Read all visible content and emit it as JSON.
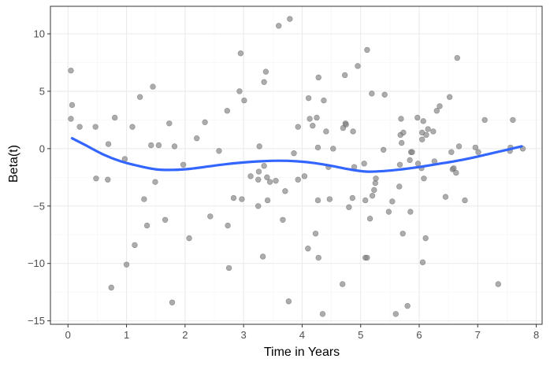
{
  "chart_data": {
    "type": "scatter",
    "title": "",
    "xlabel": "Time in Years",
    "ylabel": "Beta(t)",
    "xlim": [
      -0.3,
      8.1
    ],
    "ylim": [
      -15.3,
      12.4
    ],
    "x_ticks": [
      0,
      1,
      2,
      3,
      4,
      5,
      6,
      7,
      8
    ],
    "x_tick_labels": [
      "0",
      "1",
      "2",
      "3",
      "4",
      "5",
      "6",
      "7",
      "8"
    ],
    "y_ticks": [
      -15,
      -10,
      -5,
      0,
      5,
      10
    ],
    "y_tick_labels": [
      "−15",
      "−10",
      "−5",
      "0",
      "5",
      "10"
    ],
    "grid": true,
    "legend": "none",
    "colors": {
      "points": "#808080",
      "smooth_line": "#3366ff",
      "panel_border": "#333333",
      "grid_major": "#ebebeb",
      "grid_minor": "#f5f5f5",
      "axis_text": "#4d4d4d"
    },
    "points": [
      {
        "x": 0.05,
        "y": 6.8
      },
      {
        "x": 0.07,
        "y": 3.8
      },
      {
        "x": 0.05,
        "y": 2.6
      },
      {
        "x": 0.2,
        "y": 1.9
      },
      {
        "x": 0.47,
        "y": 1.9
      },
      {
        "x": 0.48,
        "y": -2.6
      },
      {
        "x": 0.68,
        "y": -2.7
      },
      {
        "x": 0.69,
        "y": 0.4
      },
      {
        "x": 0.8,
        "y": 2.7
      },
      {
        "x": 0.74,
        "y": -12.1
      },
      {
        "x": 0.97,
        "y": -0.9
      },
      {
        "x": 1.0,
        "y": -10.1
      },
      {
        "x": 1.1,
        "y": 1.9
      },
      {
        "x": 1.14,
        "y": -8.4
      },
      {
        "x": 1.23,
        "y": 4.5
      },
      {
        "x": 1.3,
        "y": -4.4
      },
      {
        "x": 1.35,
        "y": -6.7
      },
      {
        "x": 1.42,
        "y": 0.3
      },
      {
        "x": 1.45,
        "y": 5.4
      },
      {
        "x": 1.49,
        "y": -2.9
      },
      {
        "x": 1.55,
        "y": 0.3
      },
      {
        "x": 1.66,
        "y": -6.2
      },
      {
        "x": 1.73,
        "y": 2.2
      },
      {
        "x": 1.78,
        "y": -13.4
      },
      {
        "x": 1.82,
        "y": 0.2
      },
      {
        "x": 1.97,
        "y": -1.4
      },
      {
        "x": 2.07,
        "y": -7.8
      },
      {
        "x": 2.2,
        "y": 0.9
      },
      {
        "x": 2.34,
        "y": 2.3
      },
      {
        "x": 2.43,
        "y": -5.9
      },
      {
        "x": 2.58,
        "y": -0.2
      },
      {
        "x": 2.72,
        "y": 3.3
      },
      {
        "x": 2.73,
        "y": -6.7
      },
      {
        "x": 2.75,
        "y": -10.4
      },
      {
        "x": 2.83,
        "y": -4.3
      },
      {
        "x": 2.95,
        "y": 8.3
      },
      {
        "x": 2.93,
        "y": 5.0
      },
      {
        "x": 2.97,
        "y": -4.4
      },
      {
        "x": 3.01,
        "y": 4.2
      },
      {
        "x": 3.12,
        "y": -2.4
      },
      {
        "x": 3.25,
        "y": -2.7
      },
      {
        "x": 3.26,
        "y": -2.0
      },
      {
        "x": 3.27,
        "y": 0.2
      },
      {
        "x": 3.25,
        "y": -5.0
      },
      {
        "x": 3.33,
        "y": -9.4
      },
      {
        "x": 3.35,
        "y": -1.5
      },
      {
        "x": 3.35,
        "y": 5.8
      },
      {
        "x": 3.38,
        "y": 6.7
      },
      {
        "x": 3.4,
        "y": -2.5
      },
      {
        "x": 3.41,
        "y": -4.5
      },
      {
        "x": 3.45,
        "y": -2.9
      },
      {
        "x": 3.55,
        "y": -2.8
      },
      {
        "x": 3.6,
        "y": 10.7
      },
      {
        "x": 3.67,
        "y": -6.2
      },
      {
        "x": 3.71,
        "y": -3.7
      },
      {
        "x": 3.77,
        "y": -13.3
      },
      {
        "x": 3.79,
        "y": 11.3
      },
      {
        "x": 3.86,
        "y": -0.4
      },
      {
        "x": 3.93,
        "y": 1.9
      },
      {
        "x": 3.93,
        "y": -2.7
      },
      {
        "x": 4.04,
        "y": -2.4
      },
      {
        "x": 4.11,
        "y": 4.4
      },
      {
        "x": 4.1,
        "y": -8.7
      },
      {
        "x": 4.13,
        "y": 2.6
      },
      {
        "x": 4.18,
        "y": 2.0
      },
      {
        "x": 4.23,
        "y": -7.4
      },
      {
        "x": 4.25,
        "y": 2.7
      },
      {
        "x": 4.27,
        "y": -4.5
      },
      {
        "x": 4.28,
        "y": 6.2
      },
      {
        "x": 4.27,
        "y": 0.1
      },
      {
        "x": 4.28,
        "y": -9.5
      },
      {
        "x": 4.35,
        "y": -14.4
      },
      {
        "x": 4.37,
        "y": 4.2
      },
      {
        "x": 4.41,
        "y": 1.5
      },
      {
        "x": 4.45,
        "y": -1.6
      },
      {
        "x": 4.47,
        "y": -4.4
      },
      {
        "x": 4.53,
        "y": 0.0
      },
      {
        "x": 4.69,
        "y": -11.8
      },
      {
        "x": 4.7,
        "y": 1.8
      },
      {
        "x": 4.74,
        "y": 2.2
      },
      {
        "x": 4.73,
        "y": 6.4
      },
      {
        "x": 4.75,
        "y": 2.1
      },
      {
        "x": 4.8,
        "y": -5.1
      },
      {
        "x": 4.86,
        "y": -4.3
      },
      {
        "x": 4.87,
        "y": 1.5
      },
      {
        "x": 4.89,
        "y": -1.6
      },
      {
        "x": 4.95,
        "y": 7.2
      },
      {
        "x": 5.06,
        "y": -1.3
      },
      {
        "x": 5.08,
        "y": -9.5
      },
      {
        "x": 5.08,
        "y": -4.5
      },
      {
        "x": 5.11,
        "y": 8.6
      },
      {
        "x": 5.11,
        "y": -9.5
      },
      {
        "x": 5.16,
        "y": -6.1
      },
      {
        "x": 5.19,
        "y": 4.8
      },
      {
        "x": 5.2,
        "y": -4.1
      },
      {
        "x": 5.23,
        "y": -3.6
      },
      {
        "x": 5.25,
        "y": -3.0
      },
      {
        "x": 5.26,
        "y": -2.6
      },
      {
        "x": 5.39,
        "y": -0.1
      },
      {
        "x": 5.41,
        "y": 4.7
      },
      {
        "x": 5.48,
        "y": -5.5
      },
      {
        "x": 5.54,
        "y": -4.6
      },
      {
        "x": 5.6,
        "y": -14.4
      },
      {
        "x": 5.66,
        "y": -3.3
      },
      {
        "x": 5.67,
        "y": -1.4
      },
      {
        "x": 5.68,
        "y": 1.2
      },
      {
        "x": 5.69,
        "y": 2.6
      },
      {
        "x": 5.7,
        "y": 0.5
      },
      {
        "x": 5.72,
        "y": -7.4
      },
      {
        "x": 5.73,
        "y": 1.4
      },
      {
        "x": 5.8,
        "y": -13.7
      },
      {
        "x": 5.84,
        "y": -1.0
      },
      {
        "x": 5.85,
        "y": -5.5
      },
      {
        "x": 5.86,
        "y": -0.3
      },
      {
        "x": 5.88,
        "y": -0.3
      },
      {
        "x": 5.97,
        "y": 2.7
      },
      {
        "x": 5.98,
        "y": -1.3
      },
      {
        "x": 6.04,
        "y": -1.7
      },
      {
        "x": 6.05,
        "y": 0.8
      },
      {
        "x": 6.05,
        "y": 1.4
      },
      {
        "x": 6.06,
        "y": -9.9
      },
      {
        "x": 6.07,
        "y": 2.4
      },
      {
        "x": 6.08,
        "y": -2.6
      },
      {
        "x": 6.11,
        "y": -7.8
      },
      {
        "x": 6.12,
        "y": 1.2
      },
      {
        "x": 6.15,
        "y": 1.7
      },
      {
        "x": 6.24,
        "y": 1.5
      },
      {
        "x": 6.26,
        "y": -1.1
      },
      {
        "x": 6.3,
        "y": 3.3
      },
      {
        "x": 6.35,
        "y": 3.7
      },
      {
        "x": 6.45,
        "y": -4.2
      },
      {
        "x": 6.52,
        "y": 4.5
      },
      {
        "x": 6.55,
        "y": -0.3
      },
      {
        "x": 6.57,
        "y": -1.8
      },
      {
        "x": 6.59,
        "y": -1.7
      },
      {
        "x": 6.63,
        "y": -2.1
      },
      {
        "x": 6.65,
        "y": 7.9
      },
      {
        "x": 6.68,
        "y": 0.2
      },
      {
        "x": 6.78,
        "y": -4.5
      },
      {
        "x": 6.96,
        "y": 0.1
      },
      {
        "x": 7.01,
        "y": -0.3
      },
      {
        "x": 7.12,
        "y": 2.5
      },
      {
        "x": 7.35,
        "y": -11.8
      },
      {
        "x": 7.55,
        "y": -0.2
      },
      {
        "x": 7.56,
        "y": 0.1
      },
      {
        "x": 7.6,
        "y": 2.5
      },
      {
        "x": 7.77,
        "y": 0.0
      }
    ],
    "smooth_line": {
      "x": [
        0.07,
        0.3,
        0.6,
        0.9,
        1.2,
        1.5,
        1.8,
        2.1,
        2.4,
        2.7,
        3.0,
        3.3,
        3.6,
        3.9,
        4.2,
        4.5,
        4.8,
        5.1,
        5.4,
        5.7,
        6.0,
        6.3,
        6.6,
        6.9,
        7.2,
        7.5,
        7.75
      ],
      "y": [
        0.9,
        0.3,
        -0.5,
        -1.1,
        -1.5,
        -1.8,
        -1.85,
        -1.75,
        -1.55,
        -1.35,
        -1.2,
        -1.1,
        -1.05,
        -1.1,
        -1.25,
        -1.5,
        -1.8,
        -2.0,
        -1.95,
        -1.8,
        -1.6,
        -1.35,
        -1.1,
        -0.8,
        -0.45,
        -0.1,
        0.2
      ]
    }
  }
}
